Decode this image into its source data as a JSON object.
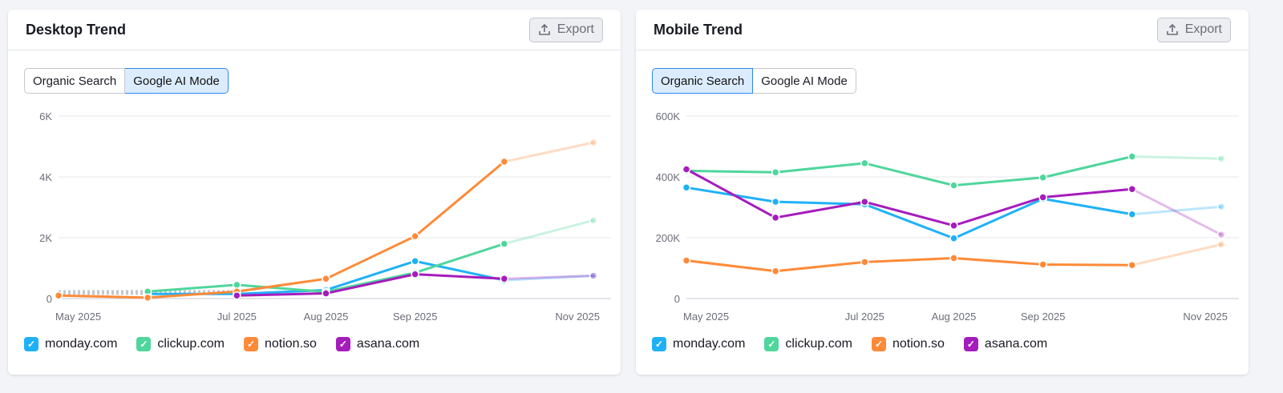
{
  "legend": [
    {
      "label": "monday.com",
      "color": "#1fb1f7"
    },
    {
      "label": "clickup.com",
      "color": "#4fd69c"
    },
    {
      "label": "notion.so",
      "color": "#ff8a38"
    },
    {
      "label": "asana.com",
      "color": "#a51cbd"
    }
  ],
  "export_label": "Export",
  "toggle": [
    "Organic Search",
    "Google AI Mode"
  ],
  "chart_data": [
    {
      "title": "Desktop Trend",
      "type": "line",
      "active_toggle": "Google AI Mode",
      "categories": [
        "May 2025",
        "Jun 2025",
        "Jul 2025",
        "Aug 2025",
        "Sep 2025",
        "Oct 2025",
        "Nov 2025"
      ],
      "x_tick_labels": [
        "May 2025",
        "",
        "Jul 2025",
        "Aug 2025",
        "Sep 2025",
        "",
        "Nov 2025"
      ],
      "y_ticks": [
        "0",
        "2K",
        "4K",
        "6K"
      ],
      "ylim": [
        0,
        6000
      ],
      "grid": true,
      "legend_placement": "bottom-left",
      "last_segment_partial": true,
      "series": [
        {
          "name": "monday.com",
          "values": [
            null,
            150,
            150,
            280,
            1230,
            600,
            750
          ]
        },
        {
          "name": "clickup.com",
          "values": [
            null,
            230,
            450,
            220,
            850,
            1800,
            2570
          ]
        },
        {
          "name": "notion.so",
          "values": [
            100,
            30,
            230,
            650,
            2050,
            4500,
            5130
          ]
        },
        {
          "name": "asana.com",
          "values": [
            null,
            null,
            100,
            170,
            800,
            650,
            750
          ]
        }
      ]
    },
    {
      "title": "Mobile Trend",
      "type": "line",
      "active_toggle": "Organic Search",
      "categories": [
        "May 2025",
        "Jun 2025",
        "Jul 2025",
        "Aug 2025",
        "Sep 2025",
        "Oct 2025",
        "Nov 2025"
      ],
      "x_tick_labels": [
        "May 2025",
        "",
        "Jul 2025",
        "Aug 2025",
        "Sep 2025",
        "",
        "Nov 2025"
      ],
      "y_ticks": [
        "0",
        "200K",
        "400K",
        "600K"
      ],
      "ylim": [
        0,
        600000
      ],
      "grid": true,
      "legend_placement": "bottom-left",
      "last_segment_partial": true,
      "series": [
        {
          "name": "monday.com",
          "values": [
            365000,
            318000,
            310000,
            198000,
            328000,
            277000,
            302000
          ]
        },
        {
          "name": "clickup.com",
          "values": [
            420000,
            415000,
            445000,
            372000,
            398000,
            467000,
            460000
          ]
        },
        {
          "name": "notion.so",
          "values": [
            125000,
            90000,
            120000,
            133000,
            112000,
            110000,
            178000
          ]
        },
        {
          "name": "asana.com",
          "values": [
            425000,
            266000,
            318000,
            240000,
            333000,
            360000,
            210000
          ]
        }
      ]
    }
  ]
}
